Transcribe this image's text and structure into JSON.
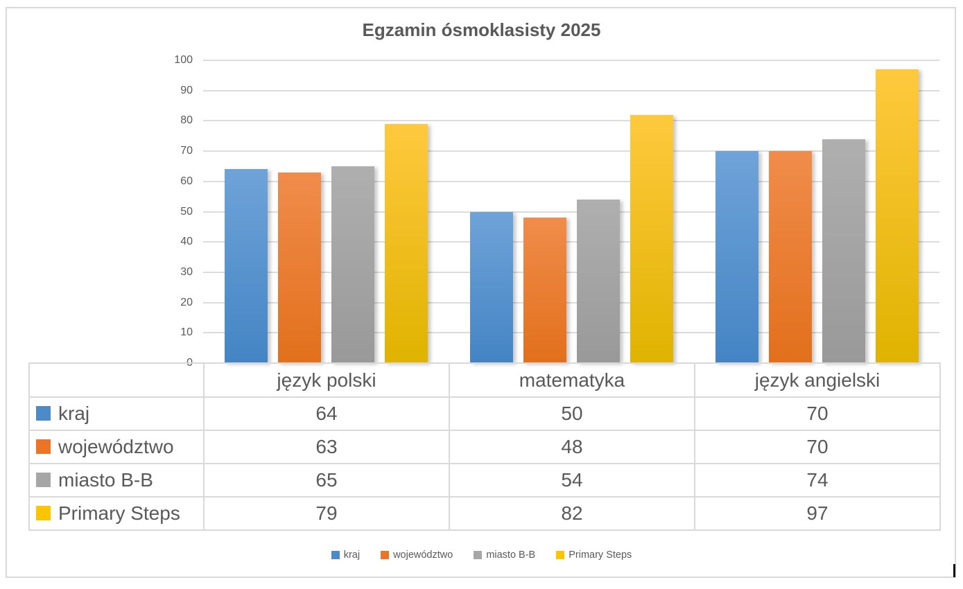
{
  "chart_data": {
    "type": "bar",
    "title": "Egzamin ósmoklasisty 2025",
    "categories": [
      "język polski",
      "matematyka",
      "język angielski"
    ],
    "series": [
      {
        "name": "kraj",
        "swatch": "#4D8AC8",
        "gradient_top": "#6FA3D8",
        "gradient_bottom": "#4484C4",
        "values": [
          64,
          50,
          70
        ]
      },
      {
        "name": "województwo",
        "swatch": "#EC7424",
        "gradient_top": "#F08C4B",
        "gradient_bottom": "#E2701C",
        "values": [
          63,
          48,
          70
        ]
      },
      {
        "name": "miasto B-B",
        "swatch": "#A6A6A6",
        "gradient_top": "#AFAFAF",
        "gradient_bottom": "#999999",
        "values": [
          65,
          54,
          74
        ]
      },
      {
        "name": "Primary Steps",
        "swatch": "#FFC400",
        "gradient_top": "#FFC93E",
        "gradient_bottom": "#DFB300",
        "values": [
          79,
          82,
          97
        ]
      }
    ],
    "ylim": [
      0,
      100
    ],
    "ytick_step": 10,
    "yticks": [
      "100",
      "90",
      "80",
      "70",
      "60",
      "50",
      "40",
      "30",
      "20",
      "10",
      "0"
    ],
    "grid": true,
    "legend_position": "bottom",
    "show_data_table": true,
    "text_color": "#595959",
    "gridline_color": "#dcdcdc",
    "table_border_color": "#d9d9d9",
    "frame_border_color": "#d9d9d9"
  }
}
